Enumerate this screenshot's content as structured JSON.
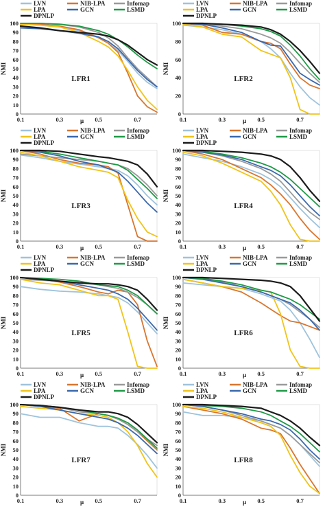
{
  "colors": {
    "LVN": "#9ec3dc",
    "NIB-LPA": "#d9762e",
    "Infomap": "#9a9a9a",
    "LPA": "#f0c419",
    "GCN": "#3a68ad",
    "LSMD": "#1e9a46",
    "DPNLP": "#1b1b1b"
  },
  "chart_data": [
    {
      "type": "line",
      "title": "LFR1",
      "xlabel": "μ",
      "ylabel": "NMI",
      "x": [
        0.1,
        0.2,
        0.3,
        0.4,
        0.5,
        0.55,
        0.6,
        0.65,
        0.7,
        0.75,
        0.8
      ],
      "xticks": [
        0.1,
        0.3,
        0.5,
        0.7
      ],
      "xlim": [
        0.1,
        0.8
      ],
      "ylim": [
        0,
        100
      ],
      "yticks": [
        0,
        10,
        20,
        30,
        40,
        50,
        60,
        70,
        80,
        90,
        100
      ],
      "series": [
        {
          "name": "LVN",
          "values": [
            99,
            98,
            96,
            92,
            85,
            78,
            70,
            58,
            45,
            35,
            28
          ]
        },
        {
          "name": "NIB-LPA",
          "values": [
            100,
            99,
            97,
            93,
            84,
            78,
            68,
            45,
            20,
            8,
            2
          ]
        },
        {
          "name": "Infomap",
          "values": [
            100,
            100,
            99,
            96,
            90,
            84,
            75,
            62,
            50,
            40,
            30
          ]
        },
        {
          "name": "LPA",
          "values": [
            99,
            98,
            96,
            90,
            80,
            74,
            64,
            48,
            30,
            15,
            5
          ]
        },
        {
          "name": "GCN",
          "values": [
            95,
            94,
            92,
            89,
            85,
            80,
            72,
            60,
            48,
            38,
            30
          ]
        },
        {
          "name": "LSMD",
          "values": [
            100,
            100,
            99,
            97,
            92,
            88,
            82,
            74,
            65,
            57,
            50
          ]
        },
        {
          "name": "DPNLP",
          "values": [
            97,
            95,
            92,
            90,
            88,
            86,
            82,
            76,
            68,
            60,
            54
          ]
        }
      ]
    },
    {
      "type": "line",
      "title": "LFR2",
      "xlabel": "μ",
      "ylabel": "NMI",
      "x": [
        0.1,
        0.2,
        0.3,
        0.4,
        0.5,
        0.55,
        0.6,
        0.65,
        0.7,
        0.75,
        0.8
      ],
      "xticks": [
        0.1,
        0.3,
        0.5,
        0.7
      ],
      "xlim": [
        0.1,
        0.8
      ],
      "ylim": [
        0,
        100
      ],
      "yticks": [
        0,
        20,
        40,
        60,
        80,
        100
      ],
      "series": [
        {
          "name": "LVN",
          "values": [
            98,
            96,
            93,
            88,
            80,
            72,
            62,
            45,
            30,
            18,
            10
          ]
        },
        {
          "name": "NIB-LPA",
          "values": [
            100,
            98,
            90,
            88,
            80,
            78,
            72,
            55,
            40,
            32,
            28
          ]
        },
        {
          "name": "Infomap",
          "values": [
            100,
            99,
            97,
            94,
            88,
            84,
            78,
            68,
            56,
            45,
            35
          ]
        },
        {
          "name": "LPA",
          "values": [
            99,
            96,
            88,
            85,
            70,
            66,
            62,
            40,
            5,
            0,
            0
          ]
        },
        {
          "name": "GCN",
          "values": [
            100,
            99,
            95,
            90,
            80,
            76,
            75,
            60,
            45,
            38,
            32
          ]
        },
        {
          "name": "LSMD",
          "values": [
            100,
            100,
            99,
            97,
            94,
            91,
            86,
            76,
            64,
            50,
            38
          ]
        },
        {
          "name": "DPNLP",
          "values": [
            100,
            100,
            99,
            98,
            96,
            93,
            88,
            80,
            70,
            58,
            45
          ]
        }
      ]
    },
    {
      "type": "line",
      "title": "LFR3",
      "xlabel": "μ",
      "ylabel": "NMI",
      "x": [
        0.1,
        0.2,
        0.3,
        0.4,
        0.5,
        0.55,
        0.6,
        0.65,
        0.7,
        0.75,
        0.8
      ],
      "xticks": [
        0.1,
        0.3,
        0.5,
        0.7
      ],
      "xlim": [
        0.1,
        0.8
      ],
      "ylim": [
        0,
        100
      ],
      "yticks": [
        0,
        10,
        20,
        30,
        40,
        50,
        60,
        70,
        80,
        90,
        100
      ],
      "series": [
        {
          "name": "LVN",
          "values": [
            95,
            92,
            88,
            85,
            82,
            80,
            78,
            72,
            62,
            50,
            40
          ]
        },
        {
          "name": "NIB-LPA",
          "values": [
            100,
            96,
            90,
            86,
            84,
            82,
            75,
            40,
            5,
            0,
            0
          ]
        },
        {
          "name": "Infomap",
          "values": [
            96,
            94,
            92,
            90,
            88,
            86,
            84,
            80,
            72,
            62,
            50
          ]
        },
        {
          "name": "LPA",
          "values": [
            98,
            94,
            88,
            82,
            78,
            76,
            70,
            45,
            25,
            10,
            5
          ]
        },
        {
          "name": "GCN",
          "values": [
            100,
            98,
            94,
            88,
            84,
            80,
            76,
            66,
            54,
            42,
            32
          ]
        },
        {
          "name": "LSMD",
          "values": [
            100,
            99,
            96,
            92,
            88,
            86,
            84,
            78,
            68,
            58,
            47
          ]
        },
        {
          "name": "DPNLP",
          "values": [
            100,
            100,
            99,
            96,
            93,
            92,
            90,
            88,
            84,
            74,
            60
          ]
        }
      ]
    },
    {
      "type": "line",
      "title": "LFR4",
      "xlabel": "μ",
      "ylabel": "NMI",
      "x": [
        0.1,
        0.2,
        0.3,
        0.4,
        0.5,
        0.55,
        0.6,
        0.65,
        0.7,
        0.75,
        0.8
      ],
      "xticks": [
        0.1,
        0.3,
        0.5,
        0.7
      ],
      "xlim": [
        0.1,
        0.8
      ],
      "ylim": [
        0,
        100
      ],
      "yticks": [
        0,
        10,
        20,
        30,
        40,
        50,
        60,
        70,
        80,
        90,
        100
      ],
      "series": [
        {
          "name": "LVN",
          "values": [
            96,
            92,
            88,
            82,
            74,
            68,
            60,
            48,
            36,
            25,
            15
          ]
        },
        {
          "name": "NIB-LPA",
          "values": [
            100,
            96,
            90,
            80,
            70,
            62,
            52,
            40,
            25,
            12,
            2
          ]
        },
        {
          "name": "Infomap",
          "values": [
            100,
            98,
            94,
            88,
            80,
            74,
            66,
            54,
            42,
            32,
            24
          ]
        },
        {
          "name": "LPA",
          "values": [
            98,
            94,
            86,
            76,
            66,
            55,
            40,
            18,
            2,
            0,
            0
          ]
        },
        {
          "name": "GCN",
          "values": [
            100,
            98,
            95,
            90,
            82,
            78,
            72,
            62,
            50,
            38,
            28
          ]
        },
        {
          "name": "LSMD",
          "values": [
            100,
            99,
            96,
            92,
            86,
            82,
            76,
            68,
            58,
            48,
            38
          ]
        },
        {
          "name": "DPNLP",
          "values": [
            100,
            100,
            99,
            98,
            96,
            94,
            90,
            82,
            70,
            56,
            44
          ]
        }
      ]
    },
    {
      "type": "line",
      "title": "LFR5",
      "xlabel": "μ",
      "ylabel": "NMI",
      "x": [
        0.1,
        0.2,
        0.3,
        0.4,
        0.5,
        0.55,
        0.6,
        0.65,
        0.7,
        0.75,
        0.8
      ],
      "xticks": [
        0.1,
        0.3,
        0.5,
        0.7
      ],
      "xlim": [
        0.1,
        0.8
      ],
      "ylim": [
        0,
        100
      ],
      "yticks": [
        0,
        10,
        20,
        30,
        40,
        50,
        60,
        70,
        80,
        90,
        100
      ],
      "series": [
        {
          "name": "LVN",
          "values": [
            90,
            87,
            85,
            84,
            82,
            80,
            78,
            72,
            62,
            50,
            38
          ]
        },
        {
          "name": "NIB-LPA",
          "values": [
            100,
            98,
            95,
            90,
            84,
            82,
            86,
            84,
            70,
            30,
            2
          ]
        },
        {
          "name": "Infomap",
          "values": [
            98,
            97,
            96,
            94,
            92,
            90,
            88,
            84,
            78,
            70,
            60
          ]
        },
        {
          "name": "LPA",
          "values": [
            98,
            94,
            92,
            86,
            80,
            80,
            76,
            40,
            2,
            0,
            0
          ]
        },
        {
          "name": "GCN",
          "values": [
            100,
            98,
            96,
            92,
            88,
            86,
            82,
            76,
            66,
            54,
            42
          ]
        },
        {
          "name": "LSMD",
          "values": [
            100,
            99,
            98,
            96,
            92,
            91,
            90,
            86,
            80,
            70,
            60
          ]
        },
        {
          "name": "DPNLP",
          "values": [
            100,
            98,
            96,
            94,
            93,
            93,
            92,
            90,
            86,
            76,
            64
          ]
        }
      ]
    },
    {
      "type": "line",
      "title": "LFR6",
      "xlabel": "μ",
      "ylabel": "NMI",
      "x": [
        0.1,
        0.2,
        0.3,
        0.4,
        0.5,
        0.55,
        0.6,
        0.65,
        0.7,
        0.75,
        0.8
      ],
      "xticks": [
        0.1,
        0.3,
        0.5,
        0.7
      ],
      "xlim": [
        0.1,
        0.8
      ],
      "ylim": [
        0,
        100
      ],
      "yticks": [
        0,
        10,
        20,
        30,
        40,
        50,
        60,
        70,
        80,
        90,
        100
      ],
      "series": [
        {
          "name": "LVN",
          "values": [
            94,
            92,
            90,
            88,
            82,
            78,
            74,
            64,
            50,
            32,
            12
          ]
        },
        {
          "name": "NIB-LPA",
          "values": [
            98,
            94,
            90,
            84,
            72,
            65,
            58,
            52,
            50,
            46,
            42
          ]
        },
        {
          "name": "Infomap",
          "values": [
            100,
            98,
            95,
            90,
            84,
            80,
            76,
            70,
            62,
            54,
            45
          ]
        },
        {
          "name": "LPA",
          "values": [
            98,
            94,
            90,
            88,
            86,
            84,
            60,
            20,
            2,
            0,
            0
          ]
        },
        {
          "name": "GCN",
          "values": [
            100,
            98,
            94,
            90,
            84,
            80,
            76,
            72,
            64,
            54,
            42
          ]
        },
        {
          "name": "LSMD",
          "values": [
            100,
            99,
            96,
            92,
            86,
            84,
            80,
            76,
            70,
            62,
            54
          ]
        },
        {
          "name": "DPNLP",
          "values": [
            100,
            100,
            99,
            98,
            97,
            96,
            94,
            90,
            80,
            66,
            52
          ]
        }
      ]
    },
    {
      "type": "line",
      "title": "LFR7",
      "xlabel": "μ",
      "ylabel": "NMI",
      "x": [
        0.1,
        0.2,
        0.3,
        0.4,
        0.5,
        0.55,
        0.6,
        0.65,
        0.7,
        0.75,
        0.8
      ],
      "xticks": [
        0.1,
        0.3,
        0.5,
        0.7
      ],
      "xlim": [
        0.1,
        0.8
      ],
      "ylim": [
        0,
        100
      ],
      "yticks": [
        0,
        10,
        20,
        30,
        40,
        50,
        60,
        70,
        80,
        90,
        100
      ],
      "series": [
        {
          "name": "LVN",
          "values": [
            90,
            86,
            86,
            80,
            76,
            76,
            74,
            66,
            56,
            44,
            30
          ]
        },
        {
          "name": "NIB-LPA",
          "values": [
            100,
            98,
            96,
            82,
            90,
            88,
            84,
            78,
            70,
            60,
            50
          ]
        },
        {
          "name": "Infomap",
          "values": [
            100,
            99,
            97,
            92,
            90,
            88,
            84,
            78,
            70,
            62,
            55
          ]
        },
        {
          "name": "LPA",
          "values": [
            98,
            96,
            94,
            90,
            88,
            86,
            80,
            70,
            55,
            35,
            20
          ]
        },
        {
          "name": "GCN",
          "values": [
            100,
            98,
            94,
            90,
            86,
            84,
            80,
            74,
            66,
            56,
            46
          ]
        },
        {
          "name": "LSMD",
          "values": [
            100,
            99,
            97,
            94,
            90,
            88,
            85,
            80,
            72,
            62,
            52
          ]
        },
        {
          "name": "DPNLP",
          "values": [
            100,
            99,
            97,
            94,
            92,
            92,
            90,
            86,
            78,
            68,
            58
          ]
        }
      ]
    },
    {
      "type": "line",
      "title": "LFR8",
      "xlabel": "μ",
      "ylabel": "NMI",
      "x": [
        0.1,
        0.2,
        0.3,
        0.4,
        0.5,
        0.55,
        0.6,
        0.65,
        0.7,
        0.75,
        0.8
      ],
      "xticks": [
        0.1,
        0.3,
        0.5,
        0.7
      ],
      "xlim": [
        0.1,
        0.8
      ],
      "ylim": [
        0,
        100
      ],
      "yticks": [
        0,
        10,
        20,
        30,
        40,
        50,
        60,
        70,
        80,
        90,
        100
      ],
      "series": [
        {
          "name": "LVN",
          "values": [
            92,
            88,
            88,
            86,
            82,
            78,
            74,
            66,
            56,
            44,
            32
          ]
        },
        {
          "name": "NIB-LPA",
          "values": [
            98,
            94,
            90,
            84,
            74,
            72,
            68,
            52,
            34,
            18,
            2
          ]
        },
        {
          "name": "Infomap",
          "values": [
            100,
            98,
            94,
            88,
            82,
            78,
            74,
            66,
            56,
            46,
            36
          ]
        },
        {
          "name": "LPA",
          "values": [
            98,
            96,
            92,
            86,
            80,
            76,
            66,
            44,
            25,
            10,
            2
          ]
        },
        {
          "name": "GCN",
          "values": [
            100,
            98,
            94,
            90,
            84,
            82,
            78,
            72,
            62,
            50,
            40
          ]
        },
        {
          "name": "LSMD",
          "values": [
            100,
            99,
            98,
            96,
            92,
            88,
            82,
            76,
            68,
            58,
            48
          ]
        },
        {
          "name": "DPNLP",
          "values": [
            100,
            100,
            99,
            98,
            96,
            92,
            88,
            82,
            74,
            64,
            55
          ]
        }
      ]
    }
  ]
}
